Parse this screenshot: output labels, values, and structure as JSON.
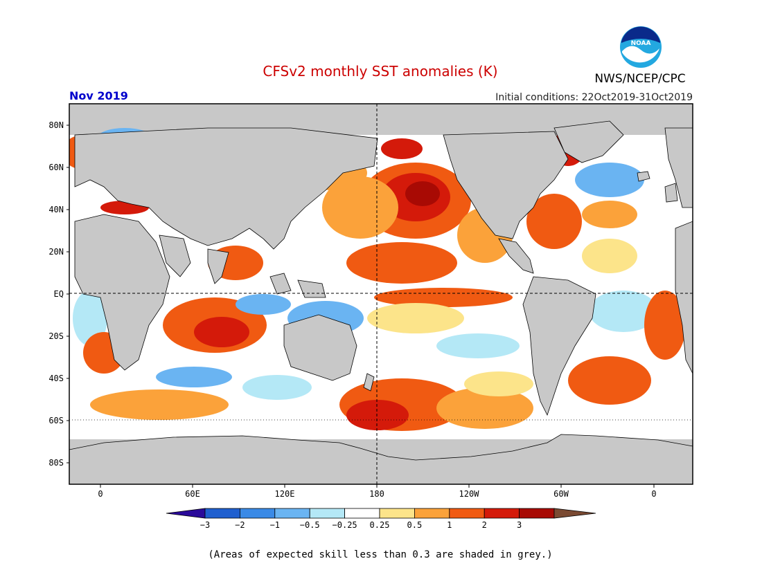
{
  "title": "CFSv2 monthly SST anomalies (K)",
  "org_label": "NWS/NCEP/CPC",
  "logo_text": "NOAA",
  "forecast_month": "Nov 2019",
  "initial_conditions": "Initial conditions: 22Oct2019-31Oct2019",
  "lat_labels": [
    "80N",
    "60N",
    "40N",
    "20N",
    "EQ",
    "20S",
    "40S",
    "60S",
    "80S"
  ],
  "lon_labels": [
    "0",
    "60E",
    "120E",
    "180",
    "120W",
    "60W",
    "0"
  ],
  "colorbar": {
    "labels": [
      "−3",
      "−2",
      "−1",
      "−0.5",
      "−0.25",
      "0.25",
      "0.5",
      "1",
      "2",
      "3"
    ],
    "colors": [
      "#2a0a9a",
      "#1f5fcf",
      "#3a8ae6",
      "#6ab4f2",
      "#b4e8f6",
      "#ffffff",
      "#fce48a",
      "#fba23a",
      "#f05a12",
      "#d41a0a",
      "#a80a04",
      "#7a4a32"
    ]
  },
  "footnote": "(Areas of expected skill less than 0.3 are shaded in grey.)",
  "colors": {
    "title": "#cc0000",
    "month": "#0000cc",
    "land": "#c8c8c8",
    "skill_grey": "#c8c8c8"
  }
}
